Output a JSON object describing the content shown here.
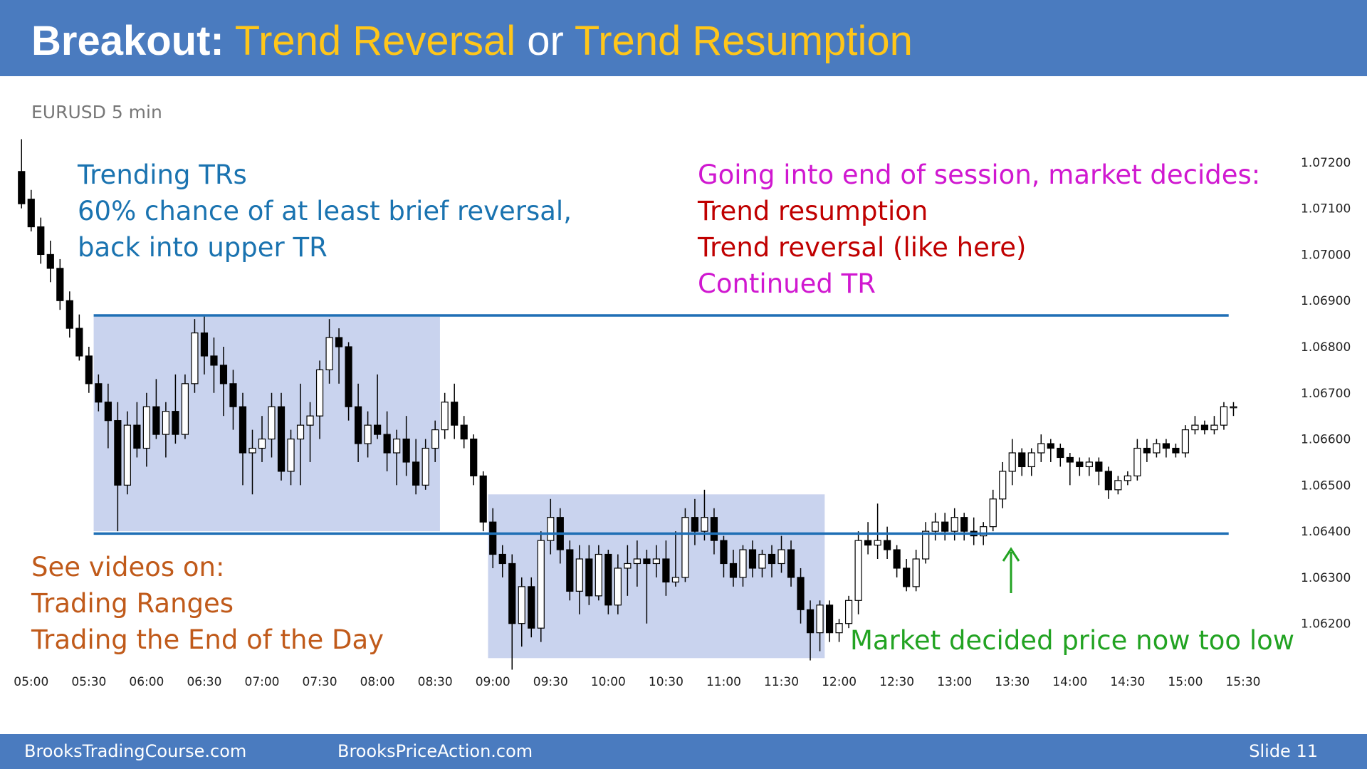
{
  "slide": {
    "title_parts": [
      "Breakout:",
      "Trend Reversal",
      "or",
      "Trend Resumption"
    ],
    "footer_left": "BrooksTradingCourse.com",
    "footer_mid": "BrooksPriceAction.com",
    "footer_right": "Slide  11"
  },
  "chart_data": {
    "type": "candlestick",
    "subtitle": "EURUSD 5 min",
    "annotations": [
      {
        "color": "#1a73b0",
        "lines": [
          "Trending TRs",
          "60% chance of at least brief reversal,",
          "back into upper TR"
        ]
      },
      {
        "color": "#d018d0",
        "lines": [
          "Going into end of session, market decides:"
        ]
      },
      {
        "color": "#c00000",
        "lines": [
          "Trend resumption",
          "Trend reversal (like here)"
        ]
      },
      {
        "color": "#d018d0",
        "lines": [
          "Continued TR"
        ]
      },
      {
        "color": "#c05a1a",
        "lines": [
          "See videos on:",
          "Trading Ranges",
          "Trading the End of the Day"
        ]
      },
      {
        "color": "#22a322",
        "lines": [
          "Market decided price now too low"
        ]
      }
    ],
    "xlim": [
      -1.5,
      129
    ],
    "xticks": [
      {
        "value": 1,
        "label": "05:00"
      },
      {
        "value": 7,
        "label": "05:30"
      },
      {
        "value": 13,
        "label": "06:00"
      },
      {
        "value": 19,
        "label": "06:30"
      },
      {
        "value": 25,
        "label": "07:00"
      },
      {
        "value": 31,
        "label": "07:30"
      },
      {
        "value": 37,
        "label": "08:00"
      },
      {
        "value": 43,
        "label": "08:30"
      },
      {
        "value": 49,
        "label": "09:00"
      },
      {
        "value": 55,
        "label": "09:30"
      },
      {
        "value": 61,
        "label": "10:00"
      },
      {
        "value": 67,
        "label": "10:30"
      },
      {
        "value": 73,
        "label": "11:00"
      },
      {
        "value": 79,
        "label": "11:30"
      },
      {
        "value": 85,
        "label": "12:00"
      },
      {
        "value": 91,
        "label": "12:30"
      },
      {
        "value": 97,
        "label": "13:00"
      },
      {
        "value": 103,
        "label": "13:30"
      },
      {
        "value": 109,
        "label": "14:00"
      },
      {
        "value": 115,
        "label": "14:30"
      },
      {
        "value": 121,
        "label": "15:00"
      },
      {
        "value": 127,
        "label": "15:30"
      }
    ],
    "ylim": [
      1.0611,
      1.0726
    ],
    "yticks": [
      {
        "value": 1.062,
        "label": "1.06200"
      },
      {
        "value": 1.063,
        "label": "1.06300"
      },
      {
        "value": 1.064,
        "label": "1.06400"
      },
      {
        "value": 1.065,
        "label": "1.06500"
      },
      {
        "value": 1.066,
        "label": "1.06600"
      },
      {
        "value": 1.067,
        "label": "1.06700"
      },
      {
        "value": 1.068,
        "label": "1.06800"
      },
      {
        "value": 1.069,
        "label": "1.06900"
      },
      {
        "value": 1.07,
        "label": "1.07000"
      },
      {
        "value": 1.071,
        "label": "1.07100"
      },
      {
        "value": 1.072,
        "label": "1.07200"
      }
    ],
    "zones": [
      {
        "x": [
          7.5,
          43.5
        ],
        "y": [
          1.064,
          1.06865
        ],
        "color": "#c9d3ee"
      },
      {
        "x": [
          48.5,
          83.5
        ],
        "y": [
          1.06125,
          1.0648
        ],
        "color": "#c9d3ee"
      }
    ],
    "hlines": [
      {
        "y": 1.06868,
        "x": [
          7.5,
          125.5
        ],
        "color": "#1f6fb5"
      },
      {
        "y": 1.06395,
        "x": [
          7.5,
          125.5
        ],
        "color": "#1f6fb5"
      }
    ],
    "ohlc": [
      [
        1.0718,
        1.0725,
        1.071,
        1.0711
      ],
      [
        1.0712,
        1.0714,
        1.0705,
        1.0706
      ],
      [
        1.0706,
        1.0708,
        1.0698,
        1.07
      ],
      [
        1.07,
        1.0703,
        1.0694,
        1.0697
      ],
      [
        1.0697,
        1.0699,
        1.0688,
        1.069
      ],
      [
        1.069,
        1.0692,
        1.0682,
        1.0684
      ],
      [
        1.0684,
        1.0687,
        1.0677,
        1.0678
      ],
      [
        1.0678,
        1.068,
        1.067,
        1.0672
      ],
      [
        1.0672,
        1.0674,
        1.0666,
        1.0668
      ],
      [
        1.0668,
        1.0672,
        1.0658,
        1.0664
      ],
      [
        1.0664,
        1.0668,
        1.064,
        1.065
      ],
      [
        1.065,
        1.0666,
        1.0648,
        1.0663
      ],
      [
        1.0663,
        1.0668,
        1.0656,
        1.0658
      ],
      [
        1.0658,
        1.067,
        1.0654,
        1.0667
      ],
      [
        1.0667,
        1.0673,
        1.066,
        1.0661
      ],
      [
        1.0661,
        1.0668,
        1.0656,
        1.0666
      ],
      [
        1.0666,
        1.0674,
        1.0659,
        1.0661
      ],
      [
        1.0661,
        1.0674,
        1.066,
        1.0672
      ],
      [
        1.0672,
        1.0686,
        1.067,
        1.0683
      ],
      [
        1.0683,
        1.0687,
        1.0674,
        1.0678
      ],
      [
        1.0678,
        1.0682,
        1.067,
        1.0676
      ],
      [
        1.0676,
        1.068,
        1.0665,
        1.0672
      ],
      [
        1.0672,
        1.0675,
        1.0662,
        1.0667
      ],
      [
        1.0667,
        1.067,
        1.065,
        1.0657
      ],
      [
        1.0657,
        1.0662,
        1.0648,
        1.0658
      ],
      [
        1.0658,
        1.0665,
        1.0655,
        1.066
      ],
      [
        1.066,
        1.067,
        1.0656,
        1.0667
      ],
      [
        1.0667,
        1.067,
        1.0651,
        1.0653
      ],
      [
        1.0653,
        1.0662,
        1.065,
        1.066
      ],
      [
        1.066,
        1.0672,
        1.065,
        1.0663
      ],
      [
        1.0663,
        1.0668,
        1.0655,
        1.0665
      ],
      [
        1.0665,
        1.0677,
        1.066,
        1.0675
      ],
      [
        1.0675,
        1.0686,
        1.0672,
        1.0682
      ],
      [
        1.0682,
        1.0684,
        1.0672,
        1.068
      ],
      [
        1.068,
        1.0681,
        1.0664,
        1.0667
      ],
      [
        1.0667,
        1.0672,
        1.0655,
        1.0659
      ],
      [
        1.0659,
        1.0666,
        1.0656,
        1.0663
      ],
      [
        1.0663,
        1.0674,
        1.066,
        1.0661
      ],
      [
        1.0661,
        1.0666,
        1.0653,
        1.0657
      ],
      [
        1.0657,
        1.0662,
        1.065,
        1.066
      ],
      [
        1.066,
        1.0665,
        1.0652,
        1.0655
      ],
      [
        1.0655,
        1.066,
        1.0648,
        1.065
      ],
      [
        1.065,
        1.066,
        1.0649,
        1.0658
      ],
      [
        1.0658,
        1.0664,
        1.0655,
        1.0662
      ],
      [
        1.0662,
        1.067,
        1.066,
        1.0668
      ],
      [
        1.0668,
        1.0672,
        1.066,
        1.0663
      ],
      [
        1.0663,
        1.0665,
        1.0658,
        1.066
      ],
      [
        1.066,
        1.0661,
        1.065,
        1.0652
      ],
      [
        1.0652,
        1.0653,
        1.064,
        1.0642
      ],
      [
        1.0642,
        1.0645,
        1.0632,
        1.0635
      ],
      [
        1.0635,
        1.0637,
        1.063,
        1.0633
      ],
      [
        1.0633,
        1.0635,
        1.061,
        1.062
      ],
      [
        1.062,
        1.063,
        1.0615,
        1.0628
      ],
      [
        1.0628,
        1.063,
        1.0617,
        1.0619
      ],
      [
        1.0619,
        1.064,
        1.0616,
        1.0638
      ],
      [
        1.0638,
        1.0647,
        1.0635,
        1.0643
      ],
      [
        1.0643,
        1.0645,
        1.0633,
        1.0636
      ],
      [
        1.0636,
        1.0638,
        1.0625,
        1.0627
      ],
      [
        1.0627,
        1.0637,
        1.0622,
        1.0634
      ],
      [
        1.0634,
        1.0637,
        1.0624,
        1.0626
      ],
      [
        1.0626,
        1.0637,
        1.0625,
        1.0635
      ],
      [
        1.0635,
        1.0636,
        1.0622,
        1.0624
      ],
      [
        1.0624,
        1.0635,
        1.0622,
        1.0632
      ],
      [
        1.0632,
        1.0637,
        1.0626,
        1.0633
      ],
      [
        1.0633,
        1.0638,
        1.0628,
        1.0634
      ],
      [
        1.0634,
        1.0636,
        1.062,
        1.0633
      ],
      [
        1.0633,
        1.0637,
        1.063,
        1.0634
      ],
      [
        1.0634,
        1.0638,
        1.0626,
        1.0629
      ],
      [
        1.0629,
        1.064,
        1.0628,
        1.063
      ],
      [
        1.063,
        1.0645,
        1.0629,
        1.0643
      ],
      [
        1.0643,
        1.0647,
        1.0637,
        1.064
      ],
      [
        1.064,
        1.0649,
        1.0638,
        1.0643
      ],
      [
        1.0643,
        1.0645,
        1.0635,
        1.0638
      ],
      [
        1.0638,
        1.0639,
        1.063,
        1.0633
      ],
      [
        1.0633,
        1.0636,
        1.0628,
        1.063
      ],
      [
        1.063,
        1.0637,
        1.0628,
        1.0636
      ],
      [
        1.0636,
        1.0638,
        1.063,
        1.0632
      ],
      [
        1.0632,
        1.0636,
        1.063,
        1.0635
      ],
      [
        1.0635,
        1.0637,
        1.063,
        1.0633
      ],
      [
        1.0633,
        1.0639,
        1.0631,
        1.0636
      ],
      [
        1.0636,
        1.0638,
        1.0628,
        1.063
      ],
      [
        1.063,
        1.0632,
        1.062,
        1.0623
      ],
      [
        1.0623,
        1.0625,
        1.0612,
        1.0618
      ],
      [
        1.0618,
        1.0625,
        1.0614,
        1.0624
      ],
      [
        1.0624,
        1.0625,
        1.0616,
        1.0618
      ],
      [
        1.0618,
        1.0621,
        1.0616,
        1.062
      ],
      [
        1.062,
        1.0626,
        1.0619,
        1.0625
      ],
      [
        1.0625,
        1.064,
        1.0622,
        1.0638
      ],
      [
        1.0638,
        1.0642,
        1.0635,
        1.0637
      ],
      [
        1.0637,
        1.0646,
        1.0634,
        1.0638
      ],
      [
        1.0638,
        1.0641,
        1.0634,
        1.0636
      ],
      [
        1.0636,
        1.0637,
        1.063,
        1.0632
      ],
      [
        1.0632,
        1.0634,
        1.0627,
        1.0628
      ],
      [
        1.0628,
        1.0636,
        1.0627,
        1.0634
      ],
      [
        1.0634,
        1.0642,
        1.0633,
        1.064
      ],
      [
        1.064,
        1.0644,
        1.0638,
        1.0642
      ],
      [
        1.0642,
        1.0644,
        1.0638,
        1.064
      ],
      [
        1.064,
        1.0645,
        1.0638,
        1.0643
      ],
      [
        1.0643,
        1.0644,
        1.0638,
        1.064
      ],
      [
        1.064,
        1.0643,
        1.0637,
        1.0639
      ],
      [
        1.0639,
        1.0642,
        1.0637,
        1.0641
      ],
      [
        1.0641,
        1.0649,
        1.064,
        1.0647
      ],
      [
        1.0647,
        1.0655,
        1.0645,
        1.0653
      ],
      [
        1.0653,
        1.066,
        1.065,
        1.0657
      ],
      [
        1.0657,
        1.0658,
        1.0652,
        1.0654
      ],
      [
        1.0654,
        1.0658,
        1.0652,
        1.0657
      ],
      [
        1.0657,
        1.0661,
        1.0655,
        1.0659
      ],
      [
        1.0659,
        1.066,
        1.0655,
        1.0658
      ],
      [
        1.0658,
        1.0659,
        1.0654,
        1.0656
      ],
      [
        1.0656,
        1.0657,
        1.065,
        1.0655
      ],
      [
        1.0655,
        1.0656,
        1.0652,
        1.0654
      ],
      [
        1.0654,
        1.0656,
        1.0652,
        1.0655
      ],
      [
        1.0655,
        1.0656,
        1.065,
        1.0653
      ],
      [
        1.0653,
        1.0654,
        1.0647,
        1.0649
      ],
      [
        1.0649,
        1.0652,
        1.0648,
        1.0651
      ],
      [
        1.0651,
        1.0653,
        1.065,
        1.0652
      ],
      [
        1.0652,
        1.066,
        1.0651,
        1.0658
      ],
      [
        1.0658,
        1.066,
        1.0655,
        1.0657
      ],
      [
        1.0657,
        1.066,
        1.0656,
        1.0659
      ],
      [
        1.0659,
        1.066,
        1.0656,
        1.0658
      ],
      [
        1.0658,
        1.0659,
        1.0656,
        1.0657
      ],
      [
        1.0657,
        1.0663,
        1.0656,
        1.0662
      ],
      [
        1.0662,
        1.0665,
        1.0661,
        1.0663
      ],
      [
        1.0663,
        1.0664,
        1.0661,
        1.0662
      ],
      [
        1.0662,
        1.0665,
        1.0661,
        1.0663
      ],
      [
        1.0663,
        1.0668,
        1.0662,
        1.0667
      ],
      [
        1.0667,
        1.0668,
        1.0665,
        1.0667
      ]
    ]
  }
}
